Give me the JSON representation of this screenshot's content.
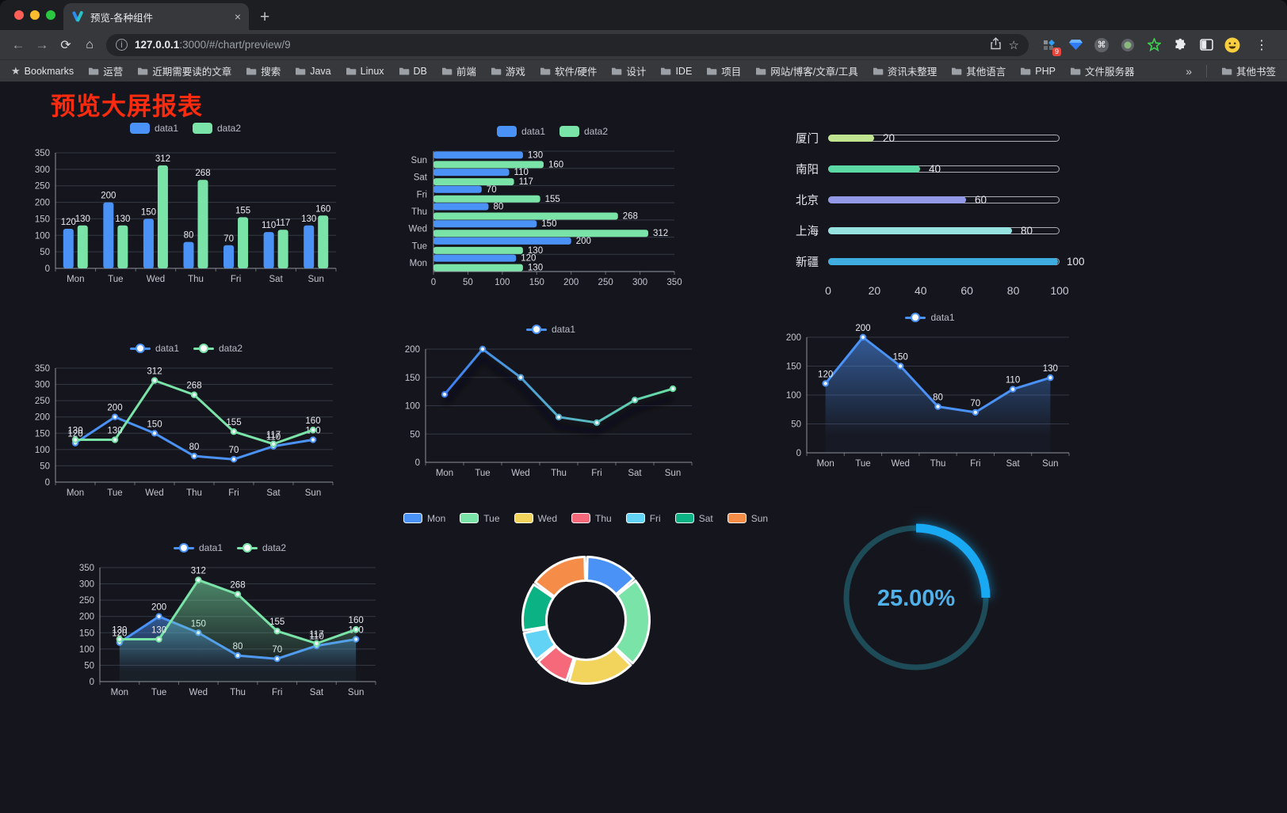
{
  "browser": {
    "tab_title": "预览-各种组件",
    "close_x": "×",
    "new_tab_plus": "+",
    "url_host": "127.0.0.1",
    "url_rest": ":3000/#/chart/preview/9",
    "bookmarks_root": "Bookmarks",
    "bookmark_folders": [
      "运营",
      "近期需要读的文章",
      "搜索",
      "Java",
      "Linux",
      "DB",
      "前端",
      "游戏",
      "软件/硬件",
      "设计",
      "IDE",
      "项目",
      "网站/博客/文章/工具",
      "资讯未整理",
      "其他语言",
      "PHP",
      "文件服务器"
    ],
    "bookmarks_overflow": "»",
    "other_bookmarks": "其他书签",
    "extension_badge": "9"
  },
  "page": {
    "title": "预览大屏报表"
  },
  "chart_data": [
    {
      "id": "bar-vertical",
      "type": "bar",
      "categories": [
        "Mon",
        "Tue",
        "Wed",
        "Thu",
        "Fri",
        "Sat",
        "Sun"
      ],
      "series": [
        {
          "name": "data1",
          "color": "#4b92f7",
          "values": [
            120,
            200,
            150,
            80,
            70,
            110,
            130
          ]
        },
        {
          "name": "data2",
          "color": "#7ae3a7",
          "values": [
            130,
            130,
            312,
            268,
            155,
            117,
            160
          ]
        }
      ],
      "ylim": [
        0,
        350
      ],
      "ytick_step": 50,
      "legend": {
        "style": "rect"
      }
    },
    {
      "id": "bar-horizontal",
      "type": "bar-horizontal",
      "categories_top_down": [
        "Sun",
        "Sat",
        "Fri",
        "Thu",
        "Wed",
        "Tue",
        "Mon"
      ],
      "series": [
        {
          "name": "data1",
          "color": "#4b92f7",
          "values": [
            130,
            110,
            70,
            80,
            150,
            200,
            120
          ]
        },
        {
          "name": "data2",
          "color": "#7ae3a7",
          "values": [
            160,
            117,
            155,
            268,
            312,
            130,
            130
          ]
        }
      ],
      "xlim": [
        0,
        350
      ],
      "xtick_step": 50,
      "legend": {
        "style": "rect"
      }
    },
    {
      "id": "progress-bars",
      "type": "progress",
      "items": [
        {
          "label": "厦门",
          "value": 20,
          "color": "#bfe38f"
        },
        {
          "label": "南阳",
          "value": 40,
          "color": "#5cd8a4"
        },
        {
          "label": "北京",
          "value": 60,
          "color": "#9399e6"
        },
        {
          "label": "上海",
          "value": 80,
          "color": "#96e2e0"
        },
        {
          "label": "新疆",
          "value": 100,
          "color": "#3fade0"
        }
      ],
      "max": 100,
      "xticks": [
        0,
        20,
        40,
        60,
        80,
        100
      ]
    },
    {
      "id": "line-two-series",
      "type": "line",
      "categories": [
        "Mon",
        "Tue",
        "Wed",
        "Thu",
        "Fri",
        "Sat",
        "Sun"
      ],
      "series": [
        {
          "name": "data1",
          "color": "#4b92f7",
          "values": [
            120,
            200,
            150,
            80,
            70,
            110,
            130
          ],
          "labels": true
        },
        {
          "name": "data2",
          "color": "#7ae3a7",
          "values": [
            130,
            130,
            312,
            268,
            155,
            117,
            160
          ],
          "labels": true
        }
      ],
      "ylim": [
        0,
        350
      ],
      "ytick_step": 50,
      "legend": {
        "style": "line"
      }
    },
    {
      "id": "line-gradient",
      "type": "line",
      "categories": [
        "Mon",
        "Tue",
        "Wed",
        "Thu",
        "Fri",
        "Sat",
        "Sun"
      ],
      "series": [
        {
          "name": "data1",
          "color": "#4b92f7",
          "gradient": [
            "#3f7df5",
            "#68e0a1"
          ],
          "values": [
            120,
            200,
            150,
            80,
            70,
            110,
            130
          ],
          "labels": false,
          "shadow": true
        }
      ],
      "ylim": [
        0,
        200
      ],
      "ytick_step": 50,
      "legend": {
        "style": "line"
      }
    },
    {
      "id": "line-area-single",
      "type": "line",
      "categories": [
        "Mon",
        "Tue",
        "Wed",
        "Thu",
        "Fri",
        "Sat",
        "Sun"
      ],
      "series": [
        {
          "name": "data1",
          "color": "#4b92f7",
          "values": [
            120,
            200,
            150,
            80,
            70,
            110,
            130
          ],
          "labels": true,
          "area": true
        }
      ],
      "ylim": [
        0,
        200
      ],
      "ytick_step": 50,
      "legend": {
        "style": "line"
      }
    },
    {
      "id": "line-area-two",
      "type": "line",
      "categories": [
        "Mon",
        "Tue",
        "Wed",
        "Thu",
        "Fri",
        "Sat",
        "Sun"
      ],
      "series": [
        {
          "name": "data1",
          "color": "#4b92f7",
          "values": [
            120,
            200,
            150,
            80,
            70,
            110,
            130
          ],
          "labels": true,
          "area": true
        },
        {
          "name": "data2",
          "color": "#7ae3a7",
          "values": [
            130,
            130,
            312,
            268,
            155,
            117,
            160
          ],
          "labels": true,
          "area": true
        }
      ],
      "ylim": [
        0,
        350
      ],
      "ytick_step": 50,
      "legend": {
        "style": "line"
      }
    },
    {
      "id": "donut",
      "type": "pie",
      "categories": [
        "Mon",
        "Tue",
        "Wed",
        "Thu",
        "Fri",
        "Sat",
        "Sun"
      ],
      "values": [
        120,
        200,
        150,
        80,
        70,
        110,
        130
      ],
      "colors": [
        "#4b92f7",
        "#7ae3a7",
        "#f2d45c",
        "#f5697b",
        "#62d2f5",
        "#0bb284",
        "#f58d49"
      ],
      "legend": {
        "style": "pie"
      }
    },
    {
      "id": "gauge",
      "type": "gauge",
      "value": 25,
      "display": "25.00%",
      "color": "#18a9f2",
      "track_color": "#1d4b58",
      "text_color": "#4fb0ea"
    }
  ]
}
